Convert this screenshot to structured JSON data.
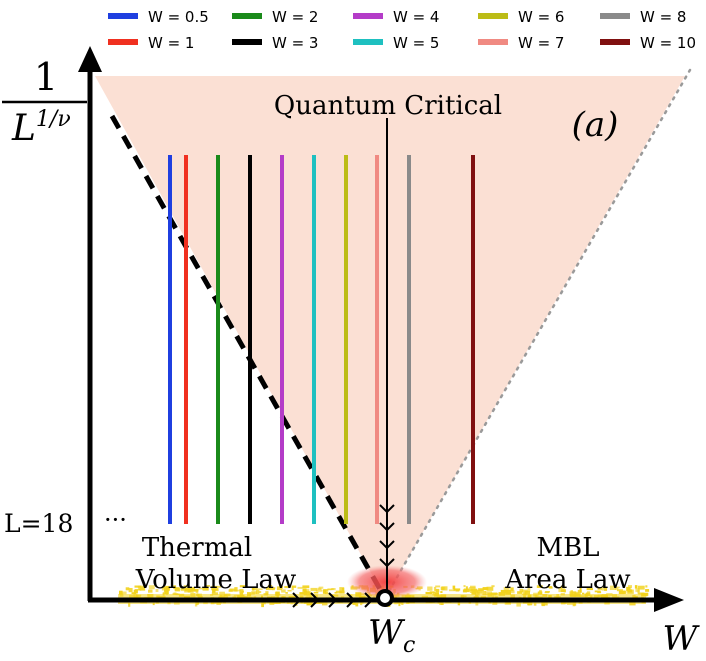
{
  "legend": {
    "items": [
      {
        "label": "W = 0.5",
        "color": "#1f3fe0"
      },
      {
        "label": "W = 2",
        "color": "#1a8a1a"
      },
      {
        "label": "W = 4",
        "color": "#b43cc8"
      },
      {
        "label": "W = 6",
        "color": "#bcbc16"
      },
      {
        "label": "W = 8",
        "color": "#8a8a8a"
      },
      {
        "label": "W = 1",
        "color": "#f03020"
      },
      {
        "label": "W = 3",
        "color": "#000000"
      },
      {
        "label": "W = 5",
        "color": "#1ec0c0"
      },
      {
        "label": "W = 7",
        "color": "#f08a82"
      },
      {
        "label": "W = 10",
        "color": "#801010"
      }
    ]
  },
  "axes": {
    "y_numerator": "1",
    "y_denominator_base": "L",
    "y_denominator_exp": "1/ν",
    "x_label": "W",
    "critical_point": "W",
    "critical_point_sub": "c"
  },
  "labels": {
    "quantum_critical": "Quantum Critical",
    "panel": "(a)",
    "system_size": "L=18",
    "ellipsis": "···",
    "thermal_line1": "Thermal",
    "thermal_line2": "Volume Law",
    "mbl_line1": "MBL",
    "mbl_line2": "Area Law"
  },
  "colors": {
    "cone_fill": "#fbe0d4",
    "glow": "#f46060",
    "gold": "#f2d21c",
    "axis": "#000000"
  },
  "lines": [
    {
      "w": "0.5",
      "color": "#1f3fe0"
    },
    {
      "w": "1",
      "color": "#f03020"
    },
    {
      "w": "2",
      "color": "#1a8a1a"
    },
    {
      "w": "3",
      "color": "#000000"
    },
    {
      "w": "4",
      "color": "#b43cc8"
    },
    {
      "w": "5",
      "color": "#1ec0c0"
    },
    {
      "w": "6",
      "color": "#bcbc16"
    },
    {
      "w": "7",
      "color": "#f08a82"
    },
    {
      "w": "8",
      "color": "#8a8a8a"
    },
    {
      "w": "10",
      "color": "#801010"
    }
  ]
}
